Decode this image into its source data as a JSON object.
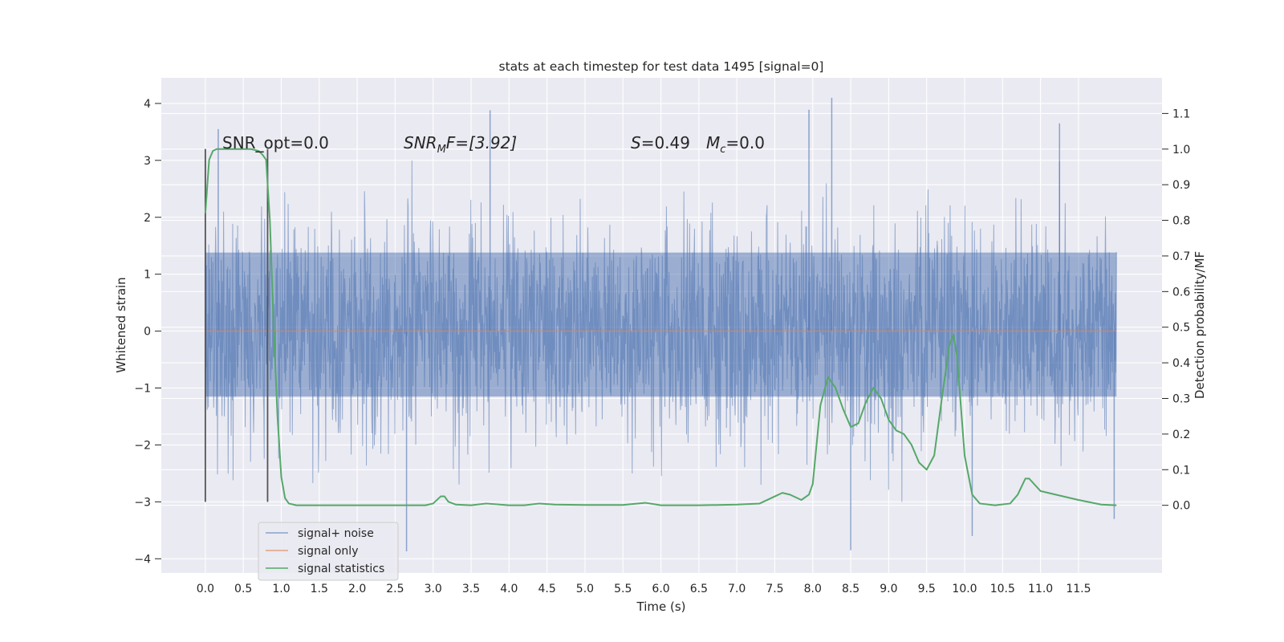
{
  "chart_data": {
    "type": "line",
    "title": "stats at each timestep for test data 1495 [signal=0]",
    "xlabel": "Time (s)",
    "ylabel": "Whitened strain",
    "y2label": "Detection probability/MF",
    "xlim": [
      -0.58,
      12.6
    ],
    "ylim": [
      -4.25,
      4.45
    ],
    "y2lim": [
      -0.19,
      1.2
    ],
    "x_ticks": [
      "0.0",
      "0.5",
      "1.0",
      "1.5",
      "2.0",
      "2.5",
      "3.0",
      "3.5",
      "4.0",
      "4.5",
      "5.0",
      "5.5",
      "6.0",
      "6.5",
      "7.0",
      "7.5",
      "8.0",
      "8.5",
      "9.0",
      "9.5",
      "10.0",
      "10.5",
      "11.0",
      "11.5"
    ],
    "y_ticks": [
      "−4",
      "−3",
      "−2",
      "−1",
      "0",
      "1",
      "2",
      "3",
      "4"
    ],
    "y2_ticks": [
      "0.0",
      "0.1",
      "0.2",
      "0.3",
      "0.4",
      "0.5",
      "0.6",
      "0.7",
      "0.8",
      "0.9",
      "1.0",
      "1.1"
    ],
    "grid": true,
    "legend_position": "lower-left",
    "annotations": {
      "snr_opt": "SNR_opt=0.0",
      "snr_mf_sym": "SNR",
      "snr_mf_sub": "M",
      "snr_mf_rest": "F=[3.92]",
      "s_sym": "S",
      "s_val": "=0.49",
      "mc_sym": "M",
      "mc_sub": "c",
      "mc_val": "=0.0"
    },
    "markers": [
      {
        "x": 0.0,
        "y_range": [
          -3.0,
          3.2
        ]
      },
      {
        "x": 0.82,
        "y_range": [
          -3.0,
          3.2
        ]
      }
    ],
    "series": [
      {
        "name": "signal+ noise",
        "color": "#4c72b0",
        "description_values": {
          "x_range": [
            0.0,
            12.0
          ],
          "approx_abs_range": [
            -3.9,
            4.1
          ]
        },
        "peaks": [
          [
            0.17,
            3.55
          ],
          [
            3.75,
            3.88
          ],
          [
            7.95,
            3.89
          ],
          [
            8.25,
            4.1
          ],
          [
            11.25,
            3.65
          ],
          [
            2.65,
            -3.87
          ],
          [
            8.5,
            -3.85
          ],
          [
            10.1,
            -3.6
          ],
          [
            11.97,
            -3.3
          ]
        ]
      },
      {
        "name": "signal only",
        "color": "#dd8452",
        "x": [
          0.0,
          12.0
        ],
        "y": [
          0.0,
          0.0
        ]
      },
      {
        "name": "signal statistics",
        "color": "#55a868",
        "axis": "right",
        "x": [
          0.0,
          0.05,
          0.1,
          0.15,
          0.2,
          0.3,
          0.4,
          0.5,
          0.6,
          0.7,
          0.75,
          0.8,
          0.85,
          0.9,
          0.95,
          1.0,
          1.05,
          1.1,
          1.2,
          1.5,
          2.0,
          2.5,
          2.9,
          3.0,
          3.1,
          3.15,
          3.2,
          3.3,
          3.5,
          3.7,
          4.0,
          4.2,
          4.4,
          4.6,
          5.0,
          5.5,
          5.8,
          6.0,
          6.5,
          7.0,
          7.3,
          7.5,
          7.6,
          7.7,
          7.85,
          7.95,
          8.0,
          8.1,
          8.2,
          8.3,
          8.4,
          8.5,
          8.6,
          8.7,
          8.8,
          8.9,
          9.0,
          9.1,
          9.2,
          9.3,
          9.4,
          9.5,
          9.6,
          9.7,
          9.8,
          9.85,
          9.9,
          10.0,
          10.1,
          10.2,
          10.4,
          10.6,
          10.7,
          10.8,
          10.85,
          11.0,
          11.2,
          11.5,
          11.8,
          12.0
        ],
        "y": [
          0.82,
          0.97,
          0.995,
          1.0,
          1.0,
          1.0,
          1.0,
          1.0,
          1.0,
          0.995,
          0.985,
          0.97,
          0.8,
          0.5,
          0.25,
          0.08,
          0.02,
          0.005,
          0.0,
          0.0,
          0.0,
          0.0,
          0.0,
          0.005,
          0.025,
          0.025,
          0.01,
          0.002,
          0.0,
          0.005,
          0.0,
          0.0,
          0.005,
          0.002,
          0.001,
          0.001,
          0.007,
          0.0,
          0.0,
          0.002,
          0.005,
          0.025,
          0.035,
          0.03,
          0.015,
          0.03,
          0.06,
          0.28,
          0.36,
          0.33,
          0.27,
          0.22,
          0.23,
          0.29,
          0.33,
          0.3,
          0.24,
          0.21,
          0.2,
          0.17,
          0.12,
          0.1,
          0.14,
          0.3,
          0.45,
          0.48,
          0.42,
          0.14,
          0.03,
          0.005,
          0.0,
          0.005,
          0.03,
          0.075,
          0.075,
          0.04,
          0.03,
          0.015,
          0.002,
          0.0
        ]
      }
    ]
  }
}
